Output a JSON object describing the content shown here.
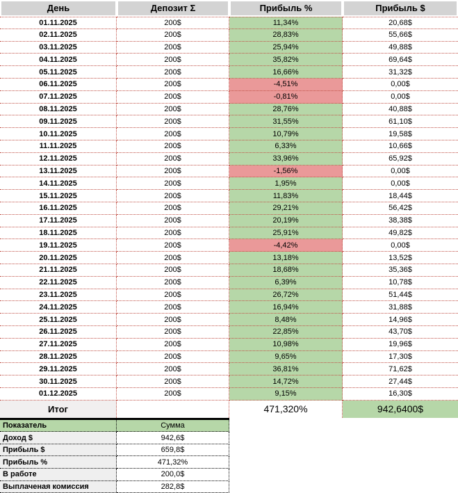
{
  "colors": {
    "header_bg": "#d3d3d3",
    "positive_bg": "#b6d7a8",
    "negative_bg": "#ea9999",
    "total_label_bg": "#f1efef",
    "summary_label_bg": "#efefef",
    "main_grid": "#c05046",
    "summary_grid": "#000000"
  },
  "table": {
    "headers": [
      "День",
      "Депозит Σ",
      "Прибыль %",
      "Прибыль $"
    ],
    "rows": [
      [
        "01.11.2025",
        "200$",
        "11,34%",
        "20,68$"
      ],
      [
        "02.11.2025",
        "200$",
        "28,83%",
        "55,66$"
      ],
      [
        "03.11.2025",
        "200$",
        "25,94%",
        "49,88$"
      ],
      [
        "04.11.2025",
        "200$",
        "35,82%",
        "69,64$"
      ],
      [
        "05.11.2025",
        "200$",
        "16,66%",
        "31,32$"
      ],
      [
        "06.11.2025",
        "200$",
        "-4,51%",
        "0,00$"
      ],
      [
        "07.11.2025",
        "200$",
        "-0,81%",
        "0,00$"
      ],
      [
        "08.11.2025",
        "200$",
        "28,76%",
        "40,88$"
      ],
      [
        "09.11.2025",
        "200$",
        "31,55%",
        "61,10$"
      ],
      [
        "10.11.2025",
        "200$",
        "10,79%",
        "19,58$"
      ],
      [
        "11.11.2025",
        "200$",
        "6,33%",
        "10,66$"
      ],
      [
        "12.11.2025",
        "200$",
        "33,96%",
        "65,92$"
      ],
      [
        "13.11.2025",
        "200$",
        "-1,56%",
        "0,00$"
      ],
      [
        "14.11.2025",
        "200$",
        "1,95%",
        "0,00$"
      ],
      [
        "15.11.2025",
        "200$",
        "11,83%",
        "18,44$"
      ],
      [
        "16.11.2025",
        "200$",
        "29,21%",
        "56,42$"
      ],
      [
        "17.11.2025",
        "200$",
        "20,19%",
        "38,38$"
      ],
      [
        "18.11.2025",
        "200$",
        "25,91%",
        "49,82$"
      ],
      [
        "19.11.2025",
        "200$",
        "-4,42%",
        "0,00$"
      ],
      [
        "20.11.2025",
        "200$",
        "13,18%",
        "13,52$"
      ],
      [
        "21.11.2025",
        "200$",
        "18,68%",
        "35,36$"
      ],
      [
        "22.11.2025",
        "200$",
        "6,39%",
        "10,78$"
      ],
      [
        "23.11.2025",
        "200$",
        "26,72%",
        "51,44$"
      ],
      [
        "24.11.2025",
        "200$",
        "16,94%",
        "31,88$"
      ],
      [
        "25.11.2025",
        "200$",
        "8,48%",
        "14,96$"
      ],
      [
        "26.11.2025",
        "200$",
        "22,85%",
        "43,70$"
      ],
      [
        "27.11.2025",
        "200$",
        "10,98%",
        "19,96$"
      ],
      [
        "28.11.2025",
        "200$",
        "9,65%",
        "17,30$"
      ],
      [
        "29.11.2025",
        "200$",
        "36,81%",
        "71,62$"
      ],
      [
        "30.11.2025",
        "200$",
        "14,72%",
        "27,44$"
      ],
      [
        "01.12.2025",
        "200$",
        "9,15%",
        "16,30$"
      ]
    ],
    "total": {
      "label": "Итог",
      "deposit": "",
      "pct": "471,320%",
      "usd": "942,6400$"
    }
  },
  "summary": {
    "headers": [
      "Показатель",
      "Сумма"
    ],
    "rows": [
      [
        "Доход $",
        "942,6$"
      ],
      [
        "Прибыль $",
        "659,8$"
      ],
      [
        "Прибыль %",
        "471,32%"
      ],
      [
        "В работе",
        "200,0$"
      ],
      [
        "Выплаченая комиссия",
        "282,8$"
      ]
    ]
  }
}
